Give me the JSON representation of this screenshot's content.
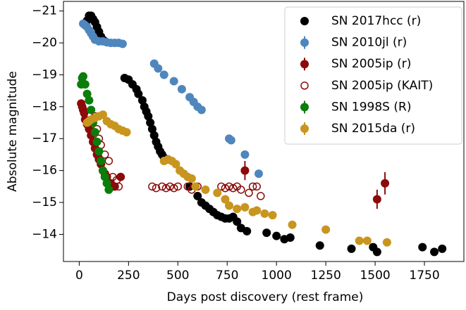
{
  "chart_data": {
    "type": "scatter",
    "xlabel": "Days post discovery (rest frame)",
    "ylabel": "Absolute magnitude",
    "xlim": [
      -80,
      1950
    ],
    "ylim": [
      -13.15,
      -21.3
    ],
    "xticks": [
      0,
      250,
      500,
      750,
      1000,
      1250,
      1500,
      1750
    ],
    "yticks": [
      {
        "value": -21,
        "label": "−21"
      },
      {
        "value": -20,
        "label": "−20"
      },
      {
        "value": -19,
        "label": "−19"
      },
      {
        "value": -18,
        "label": "−18"
      },
      {
        "value": -17,
        "label": "−17"
      },
      {
        "value": -16,
        "label": "−16"
      },
      {
        "value": -15,
        "label": "−15"
      },
      {
        "value": -14,
        "label": "−14"
      }
    ],
    "legend": "upper right",
    "series": [
      {
        "name": "SN 2017hcc (r)",
        "color": "#000000",
        "marker": "dot",
        "x": [
          40,
          50,
          60,
          70,
          80,
          90,
          100,
          110,
          120,
          130,
          230,
          250,
          270,
          290,
          300,
          320,
          330,
          340,
          350,
          360,
          370,
          380,
          390,
          400,
          410,
          420,
          430,
          450,
          560,
          600,
          620,
          640,
          660,
          680,
          700,
          720,
          740,
          760,
          780,
          800,
          820,
          850,
          950,
          1000,
          1040,
          1070,
          1220,
          1380,
          1490,
          1510,
          1740,
          1800,
          1840
        ],
        "values": [
          -20.7,
          -20.85,
          -20.85,
          -20.75,
          -20.65,
          -20.5,
          -20.35,
          -20.2,
          -20.1,
          -20.05,
          -18.9,
          -18.85,
          -18.7,
          -18.55,
          -18.4,
          -18.2,
          -18.0,
          -17.85,
          -17.7,
          -17.5,
          -17.3,
          -17.1,
          -16.9,
          -16.75,
          -16.6,
          -16.5,
          -16.4,
          -16.35,
          -15.5,
          -15.2,
          -15.0,
          -14.9,
          -14.8,
          -14.7,
          -14.6,
          -14.55,
          -14.5,
          -14.5,
          -14.55,
          -14.4,
          -14.2,
          -14.1,
          -14.05,
          -13.95,
          -13.85,
          -13.9,
          -13.65,
          -13.55,
          -13.6,
          -13.45,
          -13.6,
          -13.45,
          -13.55
        ]
      },
      {
        "name": "SN 2010jl (r)",
        "color": "#4f86bd",
        "marker": "errorbar",
        "x": [
          20,
          30,
          40,
          50,
          60,
          70,
          80,
          100,
          120,
          140,
          160,
          180,
          200,
          220,
          380,
          400,
          430,
          480,
          520,
          560,
          580,
          600,
          620,
          760,
          770,
          840,
          910
        ],
        "values": [
          -20.6,
          -20.55,
          -20.5,
          -20.4,
          -20.3,
          -20.2,
          -20.1,
          -20.05,
          -20.05,
          -20.02,
          -20.0,
          -20.0,
          -20.0,
          -19.97,
          -19.35,
          -19.2,
          -19.0,
          -18.8,
          -18.55,
          -18.3,
          -18.15,
          -18.0,
          -17.9,
          -17.0,
          -16.95,
          -16.5,
          -15.9
        ]
      },
      {
        "name": "SN 2005ip (r)",
        "color": "#8b0a0a",
        "marker": "errorbar",
        "x": [
          10,
          15,
          20,
          25,
          30,
          40,
          50,
          60,
          70,
          80,
          90,
          100,
          110,
          120,
          130,
          140,
          160,
          170,
          180,
          210,
          840,
          1510,
          1550
        ],
        "values": [
          -18.1,
          -18.0,
          -17.9,
          -17.8,
          -17.6,
          -17.45,
          -17.3,
          -17.1,
          -16.9,
          -16.7,
          -16.5,
          -16.35,
          -16.2,
          -16.0,
          -15.9,
          -15.8,
          -15.6,
          -15.5,
          -15.5,
          -15.8,
          -16.0,
          -15.1,
          -15.6
        ],
        "yerr": [
          null,
          null,
          null,
          null,
          null,
          null,
          null,
          null,
          null,
          null,
          null,
          null,
          null,
          null,
          null,
          null,
          null,
          null,
          null,
          null,
          0.3,
          0.3,
          0.35
        ]
      },
      {
        "name": "SN 2005ip (KAIT)",
        "color": "#8b0a0a",
        "marker": "hollow",
        "x": [
          80,
          90,
          100,
          110,
          130,
          150,
          170,
          190,
          200,
          370,
          390,
          420,
          440,
          460,
          480,
          500,
          550,
          570,
          600,
          720,
          740,
          760,
          780,
          800,
          820,
          860,
          880,
          900,
          920
        ],
        "values": [
          -17.7,
          -17.3,
          -17.0,
          -16.8,
          -16.5,
          -16.3,
          -15.8,
          -15.7,
          -15.5,
          -15.5,
          -15.45,
          -15.5,
          -15.45,
          -15.5,
          -15.45,
          -15.5,
          -15.5,
          -15.4,
          -15.5,
          -15.5,
          -15.45,
          -15.5,
          -15.45,
          -15.5,
          -15.4,
          -15.3,
          -15.5,
          -15.5,
          -15.2
        ]
      },
      {
        "name": "SN 1998S (R)",
        "color": "#0a7d0a",
        "marker": "errorbar",
        "x": [
          10,
          15,
          20,
          30,
          40,
          50,
          60,
          70,
          80,
          90,
          100,
          110,
          120,
          130,
          140,
          150
        ],
        "values": [
          -18.7,
          -18.9,
          -18.95,
          -18.7,
          -18.4,
          -18.2,
          -17.9,
          -17.5,
          -17.2,
          -16.9,
          -16.6,
          -16.3,
          -16.0,
          -15.8,
          -15.6,
          -15.4
        ]
      },
      {
        "name": "SN 2015da (r)",
        "color": "#c8951e",
        "marker": "errorbar",
        "x": [
          40,
          50,
          60,
          80,
          100,
          120,
          140,
          160,
          180,
          200,
          220,
          240,
          430,
          450,
          470,
          490,
          510,
          530,
          550,
          570,
          590,
          640,
          700,
          740,
          760,
          800,
          840,
          880,
          900,
          940,
          980,
          1080,
          1250,
          1420,
          1460,
          1560
        ],
        "values": [
          -17.5,
          -17.55,
          -17.6,
          -17.65,
          -17.7,
          -17.75,
          -17.55,
          -17.45,
          -17.4,
          -17.3,
          -17.25,
          -17.2,
          -16.3,
          -16.35,
          -16.3,
          -16.2,
          -16.0,
          -15.9,
          -15.8,
          -15.75,
          -15.5,
          -15.4,
          -15.3,
          -15.1,
          -14.9,
          -14.8,
          -14.85,
          -14.7,
          -14.75,
          -14.65,
          -14.6,
          -14.3,
          -14.15,
          -13.8,
          -13.8,
          -13.75
        ]
      }
    ]
  }
}
